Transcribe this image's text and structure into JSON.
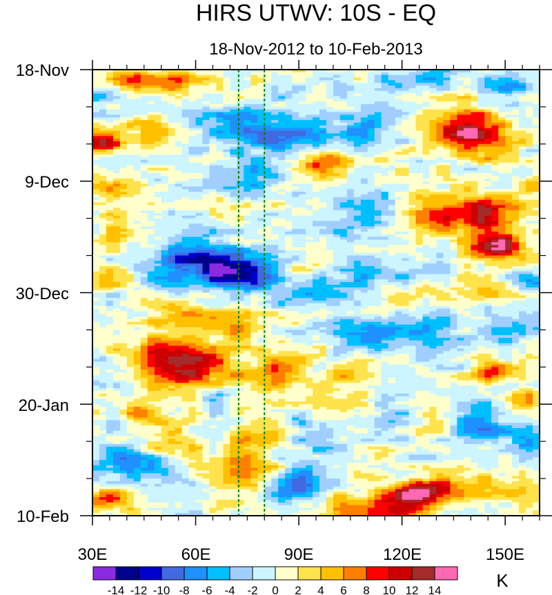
{
  "chart_data": {
    "type": "heatmap",
    "title": "HIRS UTWV: 10S - EQ",
    "subtitle": "18-Nov-2012 to 10-Feb-2013",
    "x_axis": {
      "range": [
        30,
        160
      ],
      "tick_values": [
        30,
        60,
        90,
        120,
        150
      ],
      "tick_labels": [
        "30E",
        "60E",
        "90E",
        "120E",
        "150E"
      ],
      "minor_step": 5
    },
    "y_axis": {
      "range_days": [
        0,
        84
      ],
      "tick_days": [
        0,
        21,
        42,
        63,
        84
      ],
      "tick_labels": [
        "18-Nov",
        "9-Dec",
        "30-Dec",
        "20-Jan",
        "10-Feb"
      ],
      "minor_step_days": 7
    },
    "colorbar": {
      "unit_label": "K",
      "level_labels": [
        "-14",
        "-12",
        "-10",
        "-8",
        "-6",
        "-4",
        "-2",
        "0",
        "2",
        "4",
        "6",
        "8",
        "10",
        "12",
        "14"
      ],
      "colors": [
        "#8a2be2",
        "#00008b",
        "#0000cd",
        "#4169e1",
        "#1e90ff",
        "#00bfff",
        "#a0cfff",
        "#ccf5ff",
        "#ffffcc",
        "#ffe34d",
        "#ffc000",
        "#ff8000",
        "#ff0000",
        "#cc0000",
        "#a52a2a",
        "#ff69b4"
      ]
    },
    "reference_lines_lon": [
      72.5,
      80
    ],
    "reference_line_color": "#008000",
    "anomaly_features": [
      {
        "lon": 33,
        "day": 14,
        "value": 12,
        "radius": 4
      },
      {
        "lon": 42,
        "day": 2,
        "value": 6,
        "radius": 6
      },
      {
        "lon": 55,
        "day": 2,
        "value": 6,
        "radius": 7
      },
      {
        "lon": 45,
        "day": 12,
        "value": 4,
        "radius": 9
      },
      {
        "lon": 36,
        "day": 22,
        "value": 4,
        "radius": 6
      },
      {
        "lon": 38,
        "day": 30,
        "value": 5,
        "radius": 6
      },
      {
        "lon": 35,
        "day": 39,
        "value": 6,
        "radius": 5
      },
      {
        "lon": 55,
        "day": 47,
        "value": 5,
        "radius": 8
      },
      {
        "lon": 58,
        "day": 56,
        "value": 12,
        "radius": 10
      },
      {
        "lon": 48,
        "day": 54,
        "value": 7,
        "radius": 8
      },
      {
        "lon": 45,
        "day": 64,
        "value": 6,
        "radius": 6
      },
      {
        "lon": 52,
        "day": 70,
        "value": 5,
        "radius": 7
      },
      {
        "lon": 35,
        "day": 81,
        "value": 9,
        "radius": 5
      },
      {
        "lon": 75,
        "day": 76,
        "value": 10,
        "radius": 9
      },
      {
        "lon": 78,
        "day": 69,
        "value": 6,
        "radius": 6
      },
      {
        "lon": 72,
        "day": 48,
        "value": 5,
        "radius": 8
      },
      {
        "lon": 82,
        "day": 57,
        "value": 7,
        "radius": 8
      },
      {
        "lon": 97,
        "day": 17,
        "value": 9,
        "radius": 7
      },
      {
        "lon": 88,
        "day": 38,
        "value": 4,
        "radius": 6
      },
      {
        "lon": 100,
        "day": 12,
        "value": 4,
        "radius": 6
      },
      {
        "lon": 98,
        "day": 60,
        "value": 4,
        "radius": 8
      },
      {
        "lon": 137,
        "day": 11,
        "value": 10,
        "radius": 10
      },
      {
        "lon": 143,
        "day": 13,
        "value": 6,
        "radius": 8
      },
      {
        "lon": 142,
        "day": 27,
        "value": 11,
        "radius": 9
      },
      {
        "lon": 148,
        "day": 33,
        "value": 13,
        "radius": 7
      },
      {
        "lon": 127,
        "day": 27,
        "value": 6,
        "radius": 7
      },
      {
        "lon": 148,
        "day": 42,
        "value": 4,
        "radius": 6
      },
      {
        "lon": 147,
        "day": 57,
        "value": 8,
        "radius": 5
      },
      {
        "lon": 124,
        "day": 80,
        "value": 13,
        "radius": 6
      },
      {
        "lon": 115,
        "day": 83,
        "value": 8,
        "radius": 9
      },
      {
        "lon": 100,
        "day": 83,
        "value": 5,
        "radius": 8
      },
      {
        "lon": 135,
        "day": 79,
        "value": 6,
        "radius": 7
      },
      {
        "lon": 130,
        "day": 66,
        "value": 4,
        "radius": 7
      },
      {
        "lon": 150,
        "day": 79,
        "value": 5,
        "radius": 6
      },
      {
        "lon": 110,
        "day": 56,
        "value": 3,
        "radius": 7
      },
      {
        "lon": 158,
        "day": 22,
        "value": 5,
        "radius": 4
      },
      {
        "lon": 157,
        "day": 62,
        "value": 6,
        "radius": 5
      },
      {
        "lon": 120,
        "day": 43,
        "value": 3,
        "radius": 8
      },
      {
        "lon": 33,
        "day": 5,
        "value": -5,
        "radius": 5
      },
      {
        "lon": 50,
        "day": 7,
        "value": -3,
        "radius": 6
      },
      {
        "lon": 70,
        "day": 10,
        "value": -5,
        "radius": 9
      },
      {
        "lon": 85,
        "day": 12,
        "value": -8,
        "radius": 10
      },
      {
        "lon": 100,
        "day": 13,
        "value": -6,
        "radius": 8
      },
      {
        "lon": 110,
        "day": 11,
        "value": -5,
        "radius": 8
      },
      {
        "lon": 76,
        "day": 20,
        "value": -6,
        "radius": 7
      },
      {
        "lon": 117,
        "day": 3,
        "value": -5,
        "radius": 7
      },
      {
        "lon": 130,
        "day": 2,
        "value": -4,
        "radius": 6
      },
      {
        "lon": 150,
        "day": 3,
        "value": -6,
        "radius": 6
      },
      {
        "lon": 110,
        "day": 25,
        "value": -4,
        "radius": 9
      },
      {
        "lon": 60,
        "day": 36,
        "value": -8,
        "radius": 10
      },
      {
        "lon": 78,
        "day": 38,
        "value": -9,
        "radius": 9
      },
      {
        "lon": 68,
        "day": 38,
        "value": -6,
        "radius": 8
      },
      {
        "lon": 50,
        "day": 38,
        "value": -4,
        "radius": 7
      },
      {
        "lon": 92,
        "day": 42,
        "value": -4,
        "radius": 8
      },
      {
        "lon": 108,
        "day": 38,
        "value": -4,
        "radius": 8
      },
      {
        "lon": 125,
        "day": 38,
        "value": -3,
        "radius": 7
      },
      {
        "lon": 150,
        "day": 48,
        "value": -4,
        "radius": 8
      },
      {
        "lon": 157,
        "day": 40,
        "value": -5,
        "radius": 5
      },
      {
        "lon": 110,
        "day": 50,
        "value": -6,
        "radius": 8
      },
      {
        "lon": 128,
        "day": 49,
        "value": -5,
        "radius": 8
      },
      {
        "lon": 40,
        "day": 74,
        "value": -9,
        "radius": 7
      },
      {
        "lon": 53,
        "day": 76,
        "value": -4,
        "radius": 6
      },
      {
        "lon": 88,
        "day": 78,
        "value": -9,
        "radius": 9
      },
      {
        "lon": 95,
        "day": 68,
        "value": -4,
        "radius": 8
      },
      {
        "lon": 142,
        "day": 67,
        "value": -7,
        "radius": 8
      },
      {
        "lon": 157,
        "day": 70,
        "value": -6,
        "radius": 6
      },
      {
        "lon": 120,
        "day": 66,
        "value": -3,
        "radius": 7
      },
      {
        "lon": 65,
        "day": 62,
        "value": -3,
        "radius": 7
      },
      {
        "lon": 105,
        "day": 30,
        "value": -3,
        "radius": 7
      }
    ]
  }
}
